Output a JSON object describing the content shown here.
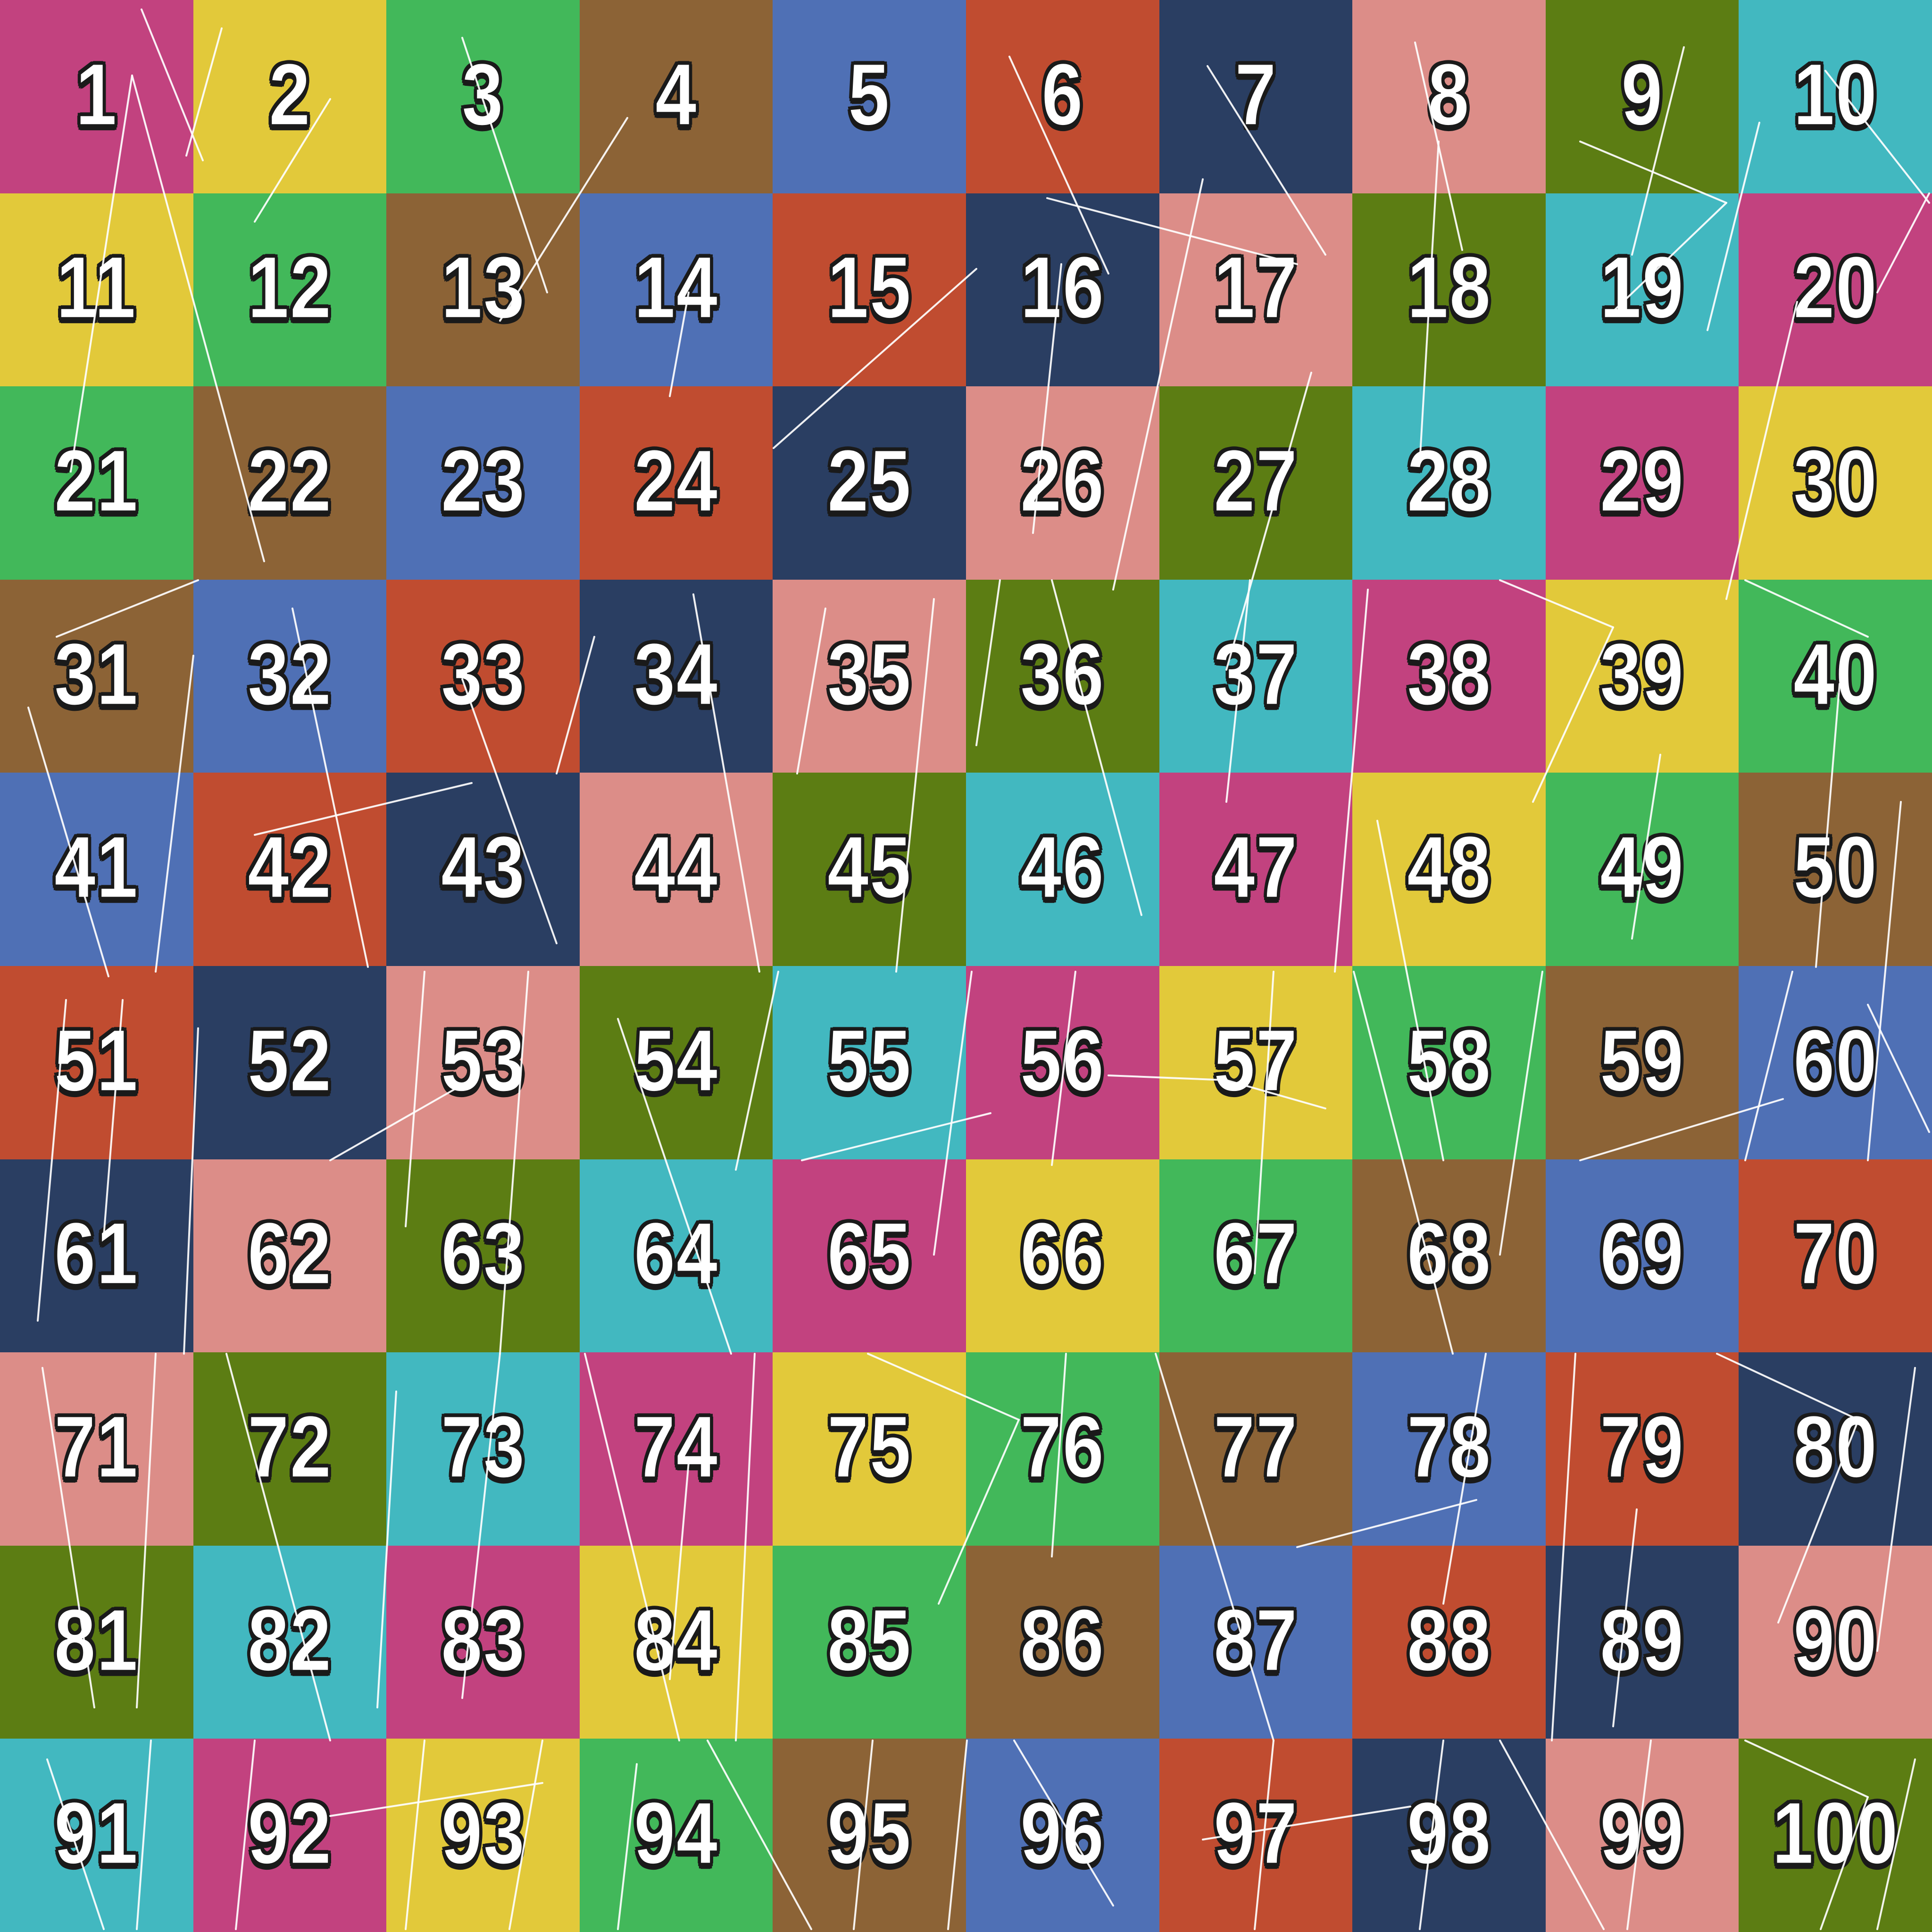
{
  "palette": {
    "magenta": "#c2427f",
    "yellow": "#e2c93a",
    "green": "#42b85a",
    "brown": "#8c6336",
    "blue": "#4f70b5",
    "red": "#c04c30",
    "navy": "#2a3e62",
    "salmon": "#dc8d88",
    "olive": "#5c7d13",
    "teal": "#42b8c0"
  },
  "grid": {
    "rows": 10,
    "cols": 10,
    "cells": [
      {
        "n": "1",
        "color": "#c2427f"
      },
      {
        "n": "2",
        "color": "#e2c93a"
      },
      {
        "n": "3",
        "color": "#42b85a"
      },
      {
        "n": "4",
        "color": "#8c6336"
      },
      {
        "n": "5",
        "color": "#4f70b5"
      },
      {
        "n": "6",
        "color": "#c04c30"
      },
      {
        "n": "7",
        "color": "#2a3e62"
      },
      {
        "n": "8",
        "color": "#dc8d88"
      },
      {
        "n": "9",
        "color": "#5c7d13"
      },
      {
        "n": "10",
        "color": "#42b8c0"
      },
      {
        "n": "11",
        "color": "#e2c93a"
      },
      {
        "n": "12",
        "color": "#42b85a"
      },
      {
        "n": "13",
        "color": "#8c6336"
      },
      {
        "n": "14",
        "color": "#4f70b5"
      },
      {
        "n": "15",
        "color": "#c04c30"
      },
      {
        "n": "16",
        "color": "#2a3e62"
      },
      {
        "n": "17",
        "color": "#dc8d88"
      },
      {
        "n": "18",
        "color": "#5c7d13"
      },
      {
        "n": "19",
        "color": "#42b8c0"
      },
      {
        "n": "20",
        "color": "#c2427f"
      },
      {
        "n": "21",
        "color": "#42b85a"
      },
      {
        "n": "22",
        "color": "#8c6336"
      },
      {
        "n": "23",
        "color": "#4f70b5"
      },
      {
        "n": "24",
        "color": "#c04c30"
      },
      {
        "n": "25",
        "color": "#2a3e62"
      },
      {
        "n": "26",
        "color": "#dc8d88"
      },
      {
        "n": "27",
        "color": "#5c7d13"
      },
      {
        "n": "28",
        "color": "#42b8c0"
      },
      {
        "n": "29",
        "color": "#c2427f"
      },
      {
        "n": "30",
        "color": "#e2c93a"
      },
      {
        "n": "31",
        "color": "#8c6336"
      },
      {
        "n": "32",
        "color": "#4f70b5"
      },
      {
        "n": "33",
        "color": "#c04c30"
      },
      {
        "n": "34",
        "color": "#2a3e62"
      },
      {
        "n": "35",
        "color": "#dc8d88"
      },
      {
        "n": "36",
        "color": "#5c7d13"
      },
      {
        "n": "37",
        "color": "#42b8c0"
      },
      {
        "n": "38",
        "color": "#c2427f"
      },
      {
        "n": "39",
        "color": "#e2c93a"
      },
      {
        "n": "40",
        "color": "#42b85a"
      },
      {
        "n": "41",
        "color": "#4f70b5"
      },
      {
        "n": "42",
        "color": "#c04c30"
      },
      {
        "n": "43",
        "color": "#2a3e62"
      },
      {
        "n": "44",
        "color": "#dc8d88"
      },
      {
        "n": "45",
        "color": "#5c7d13"
      },
      {
        "n": "46",
        "color": "#42b8c0"
      },
      {
        "n": "47",
        "color": "#c2427f"
      },
      {
        "n": "48",
        "color": "#e2c93a"
      },
      {
        "n": "49",
        "color": "#42b85a"
      },
      {
        "n": "50",
        "color": "#8c6336"
      },
      {
        "n": "51",
        "color": "#c04c30"
      },
      {
        "n": "52",
        "color": "#2a3e62"
      },
      {
        "n": "53",
        "color": "#dc8d88"
      },
      {
        "n": "54",
        "color": "#5c7d13"
      },
      {
        "n": "55",
        "color": "#42b8c0"
      },
      {
        "n": "56",
        "color": "#c2427f"
      },
      {
        "n": "57",
        "color": "#e2c93a"
      },
      {
        "n": "58",
        "color": "#42b85a"
      },
      {
        "n": "59",
        "color": "#8c6336"
      },
      {
        "n": "60",
        "color": "#4f70b5"
      },
      {
        "n": "61",
        "color": "#2a3e62"
      },
      {
        "n": "62",
        "color": "#dc8d88"
      },
      {
        "n": "63",
        "color": "#5c7d13"
      },
      {
        "n": "64",
        "color": "#42b8c0"
      },
      {
        "n": "65",
        "color": "#c2427f"
      },
      {
        "n": "66",
        "color": "#e2c93a"
      },
      {
        "n": "67",
        "color": "#42b85a"
      },
      {
        "n": "68",
        "color": "#8c6336"
      },
      {
        "n": "69",
        "color": "#4f70b5"
      },
      {
        "n": "70",
        "color": "#c04c30"
      },
      {
        "n": "71",
        "color": "#dc8d88"
      },
      {
        "n": "72",
        "color": "#5c7d13"
      },
      {
        "n": "73",
        "color": "#42b8c0"
      },
      {
        "n": "74",
        "color": "#c2427f"
      },
      {
        "n": "75",
        "color": "#e2c93a"
      },
      {
        "n": "76",
        "color": "#42b85a"
      },
      {
        "n": "77",
        "color": "#8c6336"
      },
      {
        "n": "78",
        "color": "#4f70b5"
      },
      {
        "n": "79",
        "color": "#c04c30"
      },
      {
        "n": "80",
        "color": "#2a3e62"
      },
      {
        "n": "81",
        "color": "#5c7d13"
      },
      {
        "n": "82",
        "color": "#42b8c0"
      },
      {
        "n": "83",
        "color": "#c2427f"
      },
      {
        "n": "84",
        "color": "#e2c93a"
      },
      {
        "n": "85",
        "color": "#42b85a"
      },
      {
        "n": "86",
        "color": "#8c6336"
      },
      {
        "n": "87",
        "color": "#4f70b5"
      },
      {
        "n": "88",
        "color": "#c04c30"
      },
      {
        "n": "89",
        "color": "#2a3e62"
      },
      {
        "n": "90",
        "color": "#dc8d88"
      },
      {
        "n": "91",
        "color": "#42b8c0"
      },
      {
        "n": "92",
        "color": "#c2427f"
      },
      {
        "n": "93",
        "color": "#e2c93a"
      },
      {
        "n": "94",
        "color": "#42b85a"
      },
      {
        "n": "95",
        "color": "#8c6336"
      },
      {
        "n": "96",
        "color": "#4f70b5"
      },
      {
        "n": "97",
        "color": "#c04c30"
      },
      {
        "n": "98",
        "color": "#2a3e62"
      },
      {
        "n": "99",
        "color": "#dc8d88"
      },
      {
        "n": "100",
        "color": "#5c7d13"
      }
    ]
  },
  "scratch_lines": [
    [
      150,
      1000,
      280,
      160
    ],
    [
      280,
      160,
      560,
      1190
    ],
    [
      980,
      80,
      1160,
      620
    ],
    [
      1330,
      250,
      1060,
      680
    ],
    [
      1460,
      620,
      1420,
      840
    ],
    [
      1640,
      950,
      2070,
      570
    ],
    [
      2220,
      420,
      2750,
      560
    ],
    [
      2550,
      380,
      2360,
      1250
    ],
    [
      2780,
      790,
      2600,
      1420
    ],
    [
      3050,
      300,
      3010,
      980
    ],
    [
      3350,
      300,
      3660,
      430
    ],
    [
      3660,
      430,
      3420,
      660
    ],
    [
      3810,
      640,
      3660,
      1270
    ],
    [
      3980,
      620,
      4090,
      410
    ],
    [
      120,
      1350,
      420,
      1230
    ],
    [
      60,
      1500,
      230,
      2070
    ],
    [
      410,
      1390,
      330,
      2060
    ],
    [
      620,
      1290,
      780,
      2050
    ],
    [
      540,
      1770,
      1000,
      1660
    ],
    [
      980,
      1440,
      1180,
      2000
    ],
    [
      1260,
      1350,
      1180,
      1640
    ],
    [
      1470,
      1260,
      1610,
      2060
    ],
    [
      1750,
      1290,
      1690,
      1640
    ],
    [
      1980,
      1270,
      1900,
      2060
    ],
    [
      2120,
      1230,
      2070,
      1580
    ],
    [
      2230,
      1230,
      2420,
      1940
    ],
    [
      2650,
      1230,
      2600,
      1700
    ],
    [
      2900,
      1250,
      2830,
      2060
    ],
    [
      2920,
      1740,
      3060,
      2460
    ],
    [
      3180,
      1230,
      3420,
      1330
    ],
    [
      3420,
      1330,
      3250,
      1700
    ],
    [
      3520,
      1600,
      3460,
      1990
    ],
    [
      3700,
      1230,
      3960,
      1350
    ],
    [
      3900,
      1450,
      3850,
      2050
    ],
    [
      4030,
      1700,
      3960,
      2460
    ],
    [
      140,
      2120,
      80,
      2800
    ],
    [
      260,
      2120,
      220,
      2620
    ],
    [
      420,
      2180,
      390,
      2870
    ],
    [
      700,
      2460,
      980,
      2300
    ],
    [
      900,
      2060,
      860,
      2600
    ],
    [
      1120,
      2060,
      1060,
      2870
    ],
    [
      1310,
      2160,
      1550,
      2870
    ],
    [
      1650,
      2060,
      1560,
      2480
    ],
    [
      1700,
      2460,
      2100,
      2360
    ],
    [
      2060,
      2060,
      1980,
      2660
    ],
    [
      2280,
      2060,
      2230,
      2470
    ],
    [
      2350,
      2280,
      2600,
      2290
    ],
    [
      2600,
      2290,
      2810,
      2350
    ],
    [
      2700,
      2060,
      2660,
      2700
    ],
    [
      2870,
      2060,
      3080,
      2870
    ],
    [
      3270,
      2060,
      3180,
      2660
    ],
    [
      3350,
      2460,
      3780,
      2330
    ],
    [
      3800,
      2060,
      3700,
      2460
    ],
    [
      3960,
      2130,
      4090,
      2400
    ],
    [
      90,
      2900,
      200,
      3620
    ],
    [
      330,
      2870,
      290,
      3620
    ],
    [
      480,
      2870,
      700,
      3690
    ],
    [
      840,
      2950,
      800,
      3620
    ],
    [
      1060,
      2870,
      980,
      3600
    ],
    [
      1240,
      2870,
      1440,
      3690
    ],
    [
      1460,
      3100,
      1420,
      3560
    ],
    [
      1600,
      2870,
      1560,
      3690
    ],
    [
      1840,
      2870,
      2160,
      3010
    ],
    [
      2160,
      3010,
      1990,
      3400
    ],
    [
      2260,
      2870,
      2230,
      3300
    ],
    [
      2450,
      2870,
      2700,
      3690
    ],
    [
      2750,
      3280,
      3130,
      3180
    ],
    [
      3150,
      2870,
      3060,
      3400
    ],
    [
      3340,
      2870,
      3290,
      3690
    ],
    [
      3470,
      3200,
      3420,
      3660
    ],
    [
      3640,
      2870,
      3940,
      3010
    ],
    [
      3940,
      3010,
      3770,
      3440
    ],
    [
      4060,
      2900,
      3980,
      3500
    ],
    [
      100,
      3730,
      220,
      4090
    ],
    [
      320,
      3690,
      290,
      4090
    ],
    [
      540,
      3690,
      500,
      4090
    ],
    [
      700,
      3850,
      1150,
      3780
    ],
    [
      900,
      3690,
      860,
      4090
    ],
    [
      1150,
      3690,
      1080,
      4090
    ],
    [
      1350,
      3740,
      1310,
      4090
    ],
    [
      1500,
      3690,
      1720,
      4090
    ],
    [
      1850,
      3690,
      1810,
      4090
    ],
    [
      2050,
      3690,
      2010,
      4090
    ],
    [
      2150,
      3690,
      2360,
      4040
    ],
    [
      2550,
      3900,
      2990,
      3830
    ],
    [
      2700,
      3690,
      2660,
      4090
    ],
    [
      3060,
      3690,
      3010,
      4090
    ],
    [
      3180,
      3690,
      3400,
      4090
    ],
    [
      3500,
      3690,
      3450,
      4090
    ],
    [
      3700,
      3690,
      3960,
      3810
    ],
    [
      3960,
      3810,
      3860,
      4090
    ],
    [
      4060,
      3730,
      3980,
      4090
    ],
    [
      300,
      20,
      430,
      340
    ],
    [
      470,
      60,
      395,
      330
    ],
    [
      700,
      210,
      540,
      470
    ],
    [
      2140,
      120,
      2350,
      580
    ],
    [
      2250,
      560,
      2190,
      1130
    ],
    [
      2560,
      140,
      2810,
      540
    ],
    [
      3000,
      90,
      3100,
      530
    ],
    [
      3570,
      100,
      3460,
      540
    ],
    [
      3730,
      260,
      3620,
      700
    ],
    [
      3870,
      150,
      4090,
      430
    ]
  ]
}
